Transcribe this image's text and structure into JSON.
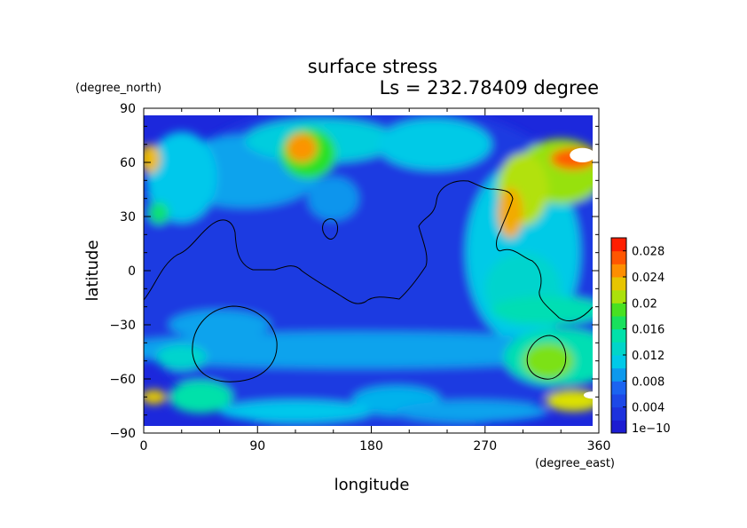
{
  "chart_data": {
    "type": "heatmap",
    "title": "surface stress",
    "subtitle": "Ls = 232.78409 degree",
    "xlabel": "longitude",
    "ylabel": "latitude",
    "x_unit": "(degree_east)",
    "y_unit": "(degree_north)",
    "xlim": [
      0,
      360
    ],
    "ylim": [
      -90,
      90
    ],
    "x_ticks": [
      "0",
      "90",
      "180",
      "270",
      "360"
    ],
    "y_ticks": [
      "90",
      "60",
      "30",
      "0",
      "−30",
      "−60",
      "−90"
    ],
    "colorbar": {
      "range": [
        0,
        0.03
      ],
      "ticks": [
        "1e−10",
        "0.004",
        "0.008",
        "0.012",
        "0.016",
        "0.02",
        "0.024",
        "0.028"
      ]
    },
    "grid": false,
    "colors": {
      "low": "#1c1cd2",
      "mid": "#00e6e6",
      "high": "#ff2a00",
      "max": "#ffffff"
    }
  }
}
